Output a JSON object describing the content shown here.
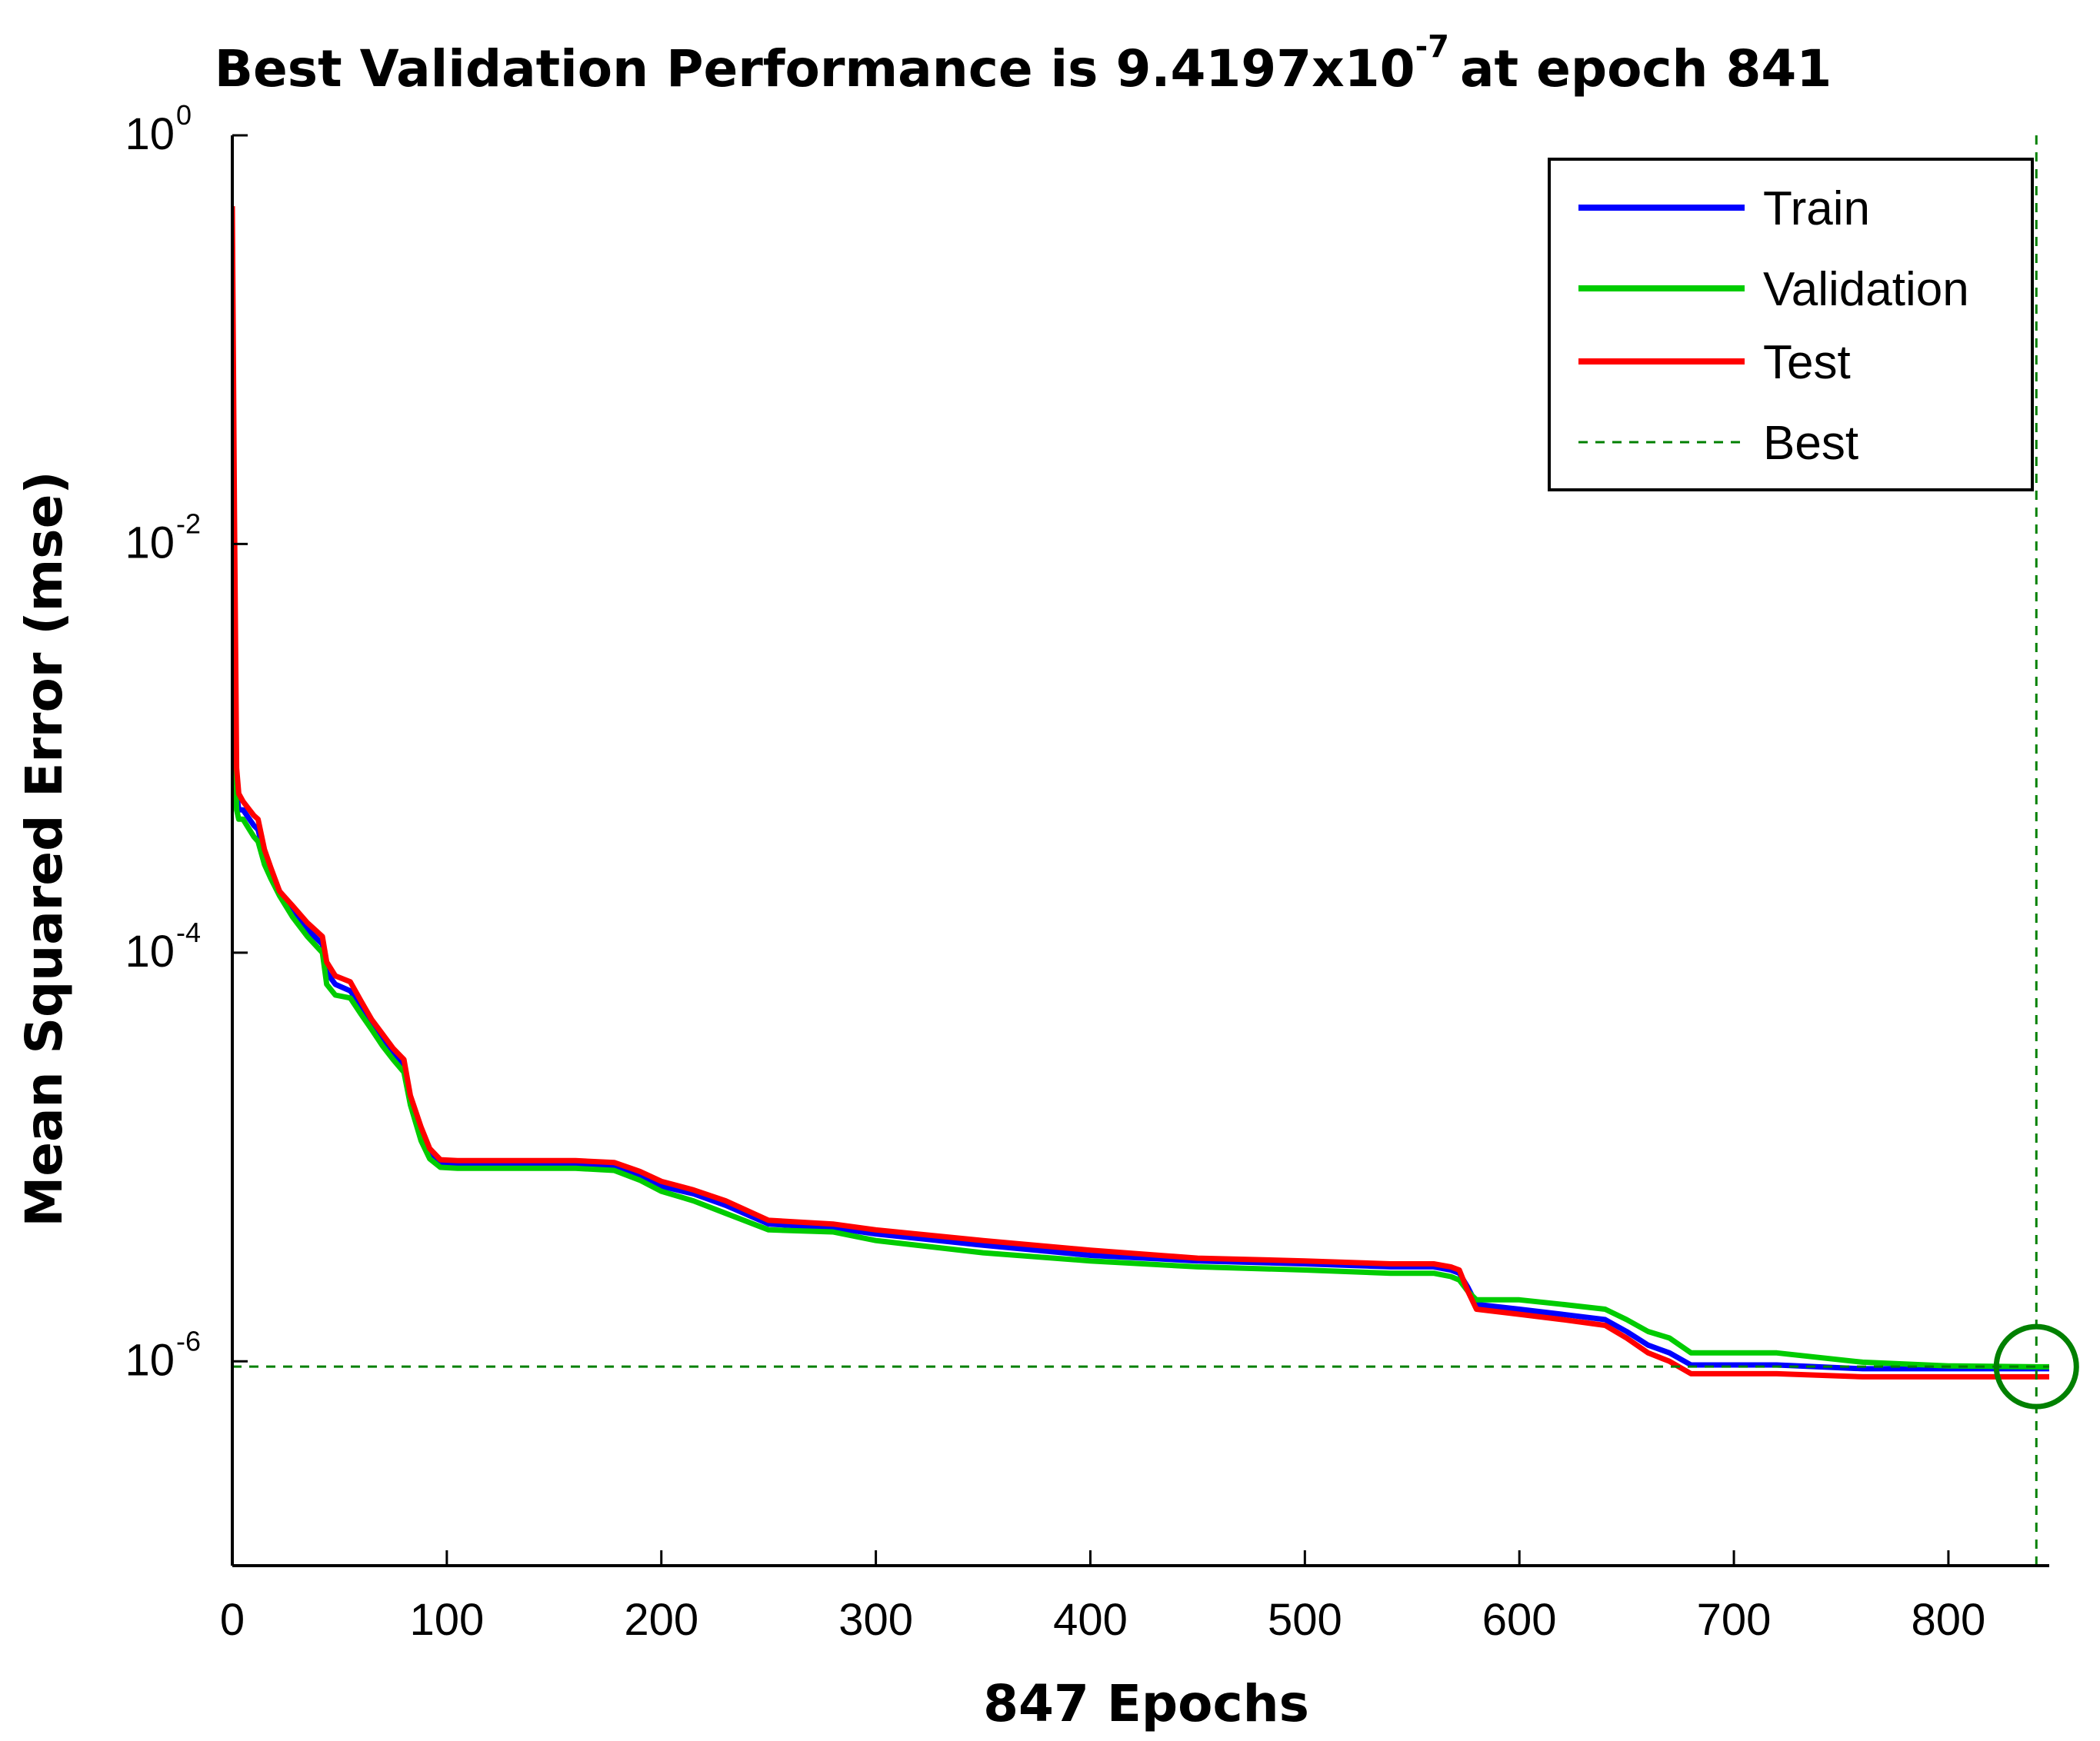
{
  "chart_data": {
    "type": "line",
    "title": {
      "main": "Best Validation Performance is 9.4197x10",
      "exponent": "-7",
      "suffix": "at epoch 841"
    },
    "xlabel": "847 Epochs",
    "ylabel": "Mean Squared Error  (mse)",
    "yscale": "log",
    "xlim": [
      0,
      847
    ],
    "ylim": [
      1e-07,
      1
    ],
    "x_ticks": [
      {
        "value": 0,
        "label": "0"
      },
      {
        "value": 100,
        "label": "100"
      },
      {
        "value": 200,
        "label": "200"
      },
      {
        "value": 300,
        "label": "300"
      },
      {
        "value": 400,
        "label": "400"
      },
      {
        "value": 500,
        "label": "500"
      },
      {
        "value": 600,
        "label": "600"
      },
      {
        "value": 700,
        "label": "700"
      },
      {
        "value": 800,
        "label": "800"
      }
    ],
    "y_ticks": [
      {
        "value": 1,
        "base": "10",
        "exp": "0"
      },
      {
        "value": 0.01,
        "base": "10",
        "exp": "-2"
      },
      {
        "value": 0.0001,
        "base": "10",
        "exp": "-4"
      },
      {
        "value": 1e-06,
        "base": "10",
        "exp": "-6"
      }
    ],
    "series": [
      {
        "name": "Train",
        "color": "#0000ff",
        "x": [
          0,
          1,
          2,
          3,
          5,
          8,
          10,
          12,
          15,
          18,
          22,
          28,
          35,
          42,
          44,
          48,
          55,
          60,
          65,
          70,
          75,
          80,
          83,
          88,
          92,
          97,
          105,
          120,
          140,
          160,
          178,
          190,
          200,
          215,
          230,
          250,
          280,
          300,
          350,
          400,
          450,
          500,
          540,
          560,
          568,
          572,
          576,
          580,
          600,
          620,
          640,
          650,
          660,
          670,
          680,
          720,
          760,
          800,
          841,
          847
        ],
        "y": [
          0.006,
          0.0015,
          0.0006,
          0.0005,
          0.0005,
          0.00045,
          0.00042,
          0.0004,
          0.0003,
          0.00025,
          0.0002,
          0.00016,
          0.00013,
          0.00011,
          8e-05,
          7e-05,
          6.5e-05,
          5.5e-05,
          4.5e-05,
          3.8e-05,
          3.2e-05,
          2.8e-05,
          1.9e-05,
          1.3e-05,
          1.05e-05,
          9.4e-06,
          9.3e-06,
          9.3e-06,
          9.3e-06,
          9.3e-06,
          9.1e-06,
          8.1e-06,
          7.2e-06,
          6.6e-06,
          5.8e-06,
          4.7e-06,
          4.5e-06,
          4.2e-06,
          3.7e-06,
          3.3e-06,
          3.1e-06,
          3e-06,
          2.9e-06,
          2.9e-06,
          2.8e-06,
          2.7e-06,
          2.3e-06,
          1.9e-06,
          1.8e-06,
          1.7e-06,
          1.6e-06,
          1.4e-06,
          1.2e-06,
          1.1e-06,
          9.6e-07,
          9.6e-07,
          9.2e-07,
          9.2e-07,
          9.2e-07,
          9.2e-07
        ]
      },
      {
        "name": "Validation",
        "color": "#00cc00",
        "x": [
          0,
          1,
          2,
          3,
          5,
          8,
          10,
          12,
          15,
          18,
          22,
          28,
          35,
          42,
          44,
          48,
          55,
          60,
          65,
          70,
          75,
          80,
          83,
          88,
          92,
          97,
          105,
          120,
          140,
          160,
          178,
          190,
          200,
          215,
          230,
          250,
          280,
          300,
          350,
          400,
          450,
          500,
          540,
          560,
          568,
          572,
          576,
          580,
          600,
          620,
          640,
          650,
          660,
          670,
          680,
          720,
          760,
          800,
          841,
          847
        ],
        "y": [
          0.008,
          0.0012,
          0.0005,
          0.00045,
          0.00045,
          0.0004,
          0.00037,
          0.00035,
          0.00027,
          0.00023,
          0.00019,
          0.00015,
          0.00012,
          0.0001,
          7e-05,
          6.2e-05,
          6e-05,
          5e-05,
          4.2e-05,
          3.5e-05,
          3e-05,
          2.6e-05,
          1.8e-05,
          1.2e-05,
          9.8e-06,
          8.9e-06,
          8.8e-06,
          8.8e-06,
          8.8e-06,
          8.8e-06,
          8.6e-06,
          7.7e-06,
          6.8e-06,
          6.1e-06,
          5.3e-06,
          4.4e-06,
          4.3e-06,
          3.9e-06,
          3.4e-06,
          3.1e-06,
          2.9e-06,
          2.8e-06,
          2.7e-06,
          2.7e-06,
          2.6e-06,
          2.5e-06,
          2.2e-06,
          2e-06,
          2e-06,
          1.9e-06,
          1.8e-06,
          1.6e-06,
          1.4e-06,
          1.3e-06,
          1.1e-06,
          1.1e-06,
          9.9e-07,
          9.5e-07,
          9.4e-07,
          9.4e-07
        ]
      },
      {
        "name": "Test",
        "color": "#ff0000",
        "x": [
          0,
          1,
          2,
          3,
          5,
          8,
          10,
          12,
          15,
          18,
          22,
          28,
          35,
          42,
          44,
          48,
          55,
          60,
          65,
          70,
          75,
          80,
          83,
          88,
          92,
          97,
          105,
          120,
          140,
          160,
          178,
          190,
          200,
          215,
          230,
          250,
          280,
          300,
          350,
          400,
          450,
          500,
          540,
          560,
          568,
          572,
          576,
          580,
          600,
          620,
          640,
          650,
          660,
          670,
          680,
          720,
          760,
          800,
          841,
          847
        ],
        "y": [
          0.45,
          0.014,
          0.0008,
          0.0006,
          0.00055,
          0.0005,
          0.00047,
          0.00045,
          0.00032,
          0.00026,
          0.0002,
          0.00017,
          0.00014,
          0.00012,
          9e-05,
          7.7e-05,
          7.2e-05,
          5.8e-05,
          4.7e-05,
          4e-05,
          3.4e-05,
          3e-05,
          2e-05,
          1.4e-05,
          1.1e-05,
          9.7e-06,
          9.6e-06,
          9.6e-06,
          9.6e-06,
          9.6e-06,
          9.4e-06,
          8.5e-06,
          7.6e-06,
          6.9e-06,
          6.1e-06,
          4.9e-06,
          4.7e-06,
          4.4e-06,
          3.9e-06,
          3.5e-06,
          3.2e-06,
          3.1e-06,
          3e-06,
          3e-06,
          2.9e-06,
          2.8e-06,
          2.2e-06,
          1.8e-06,
          1.7e-06,
          1.6e-06,
          1.5e-06,
          1.3e-06,
          1.1e-06,
          1e-06,
          8.7e-07,
          8.7e-07,
          8.4e-07,
          8.4e-07,
          8.4e-07,
          8.4e-07
        ]
      }
    ],
    "best": {
      "label": "Best",
      "epoch": 841,
      "value": 9.4197e-07,
      "color": "#008000"
    },
    "legend": {
      "position": "top-right",
      "entries": [
        {
          "label": "Train",
          "color": "#0000ff",
          "style": "solid"
        },
        {
          "label": "Validation",
          "color": "#00cc00",
          "style": "solid"
        },
        {
          "label": "Test",
          "color": "#ff0000",
          "style": "solid"
        },
        {
          "label": "Best",
          "color": "#008000",
          "style": "dashed"
        }
      ]
    }
  }
}
